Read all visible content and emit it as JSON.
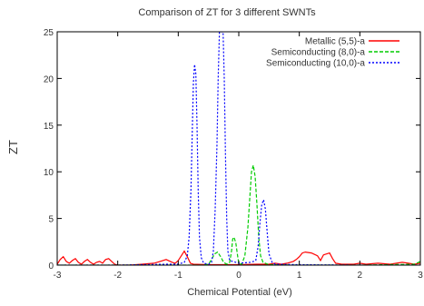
{
  "chart_data": {
    "type": "line",
    "title": "Comparison of ZT for 3 different SWNTs",
    "xlabel": "Chemical Potential (eV)",
    "ylabel": "ZT",
    "xlim": [
      -3,
      3
    ],
    "ylim": [
      0,
      25
    ],
    "xticks": [
      -3,
      -2,
      -1,
      0,
      1,
      2,
      3
    ],
    "yticks": [
      0,
      5,
      10,
      15,
      20,
      25
    ],
    "grid": false,
    "legend_position": "top-right",
    "series": [
      {
        "name": "Metallic (5,5)-a",
        "color": "#ff0000",
        "dash": "solid",
        "points": [
          [
            -3.0,
            0.1
          ],
          [
            -2.95,
            0.6
          ],
          [
            -2.9,
            0.9
          ],
          [
            -2.85,
            0.4
          ],
          [
            -2.8,
            0.2
          ],
          [
            -2.75,
            0.5
          ],
          [
            -2.7,
            0.7
          ],
          [
            -2.65,
            0.3
          ],
          [
            -2.6,
            0.1
          ],
          [
            -2.55,
            0.4
          ],
          [
            -2.5,
            0.6
          ],
          [
            -2.45,
            0.3
          ],
          [
            -2.4,
            0.1
          ],
          [
            -2.35,
            0.3
          ],
          [
            -2.3,
            0.4
          ],
          [
            -2.25,
            0.2
          ],
          [
            -2.2,
            0.6
          ],
          [
            -2.15,
            0.7
          ],
          [
            -2.1,
            0.4
          ],
          [
            -2.05,
            0.1
          ],
          [
            -2.0,
            0.0
          ],
          [
            -1.8,
            0.0
          ],
          [
            -1.6,
            0.1
          ],
          [
            -1.4,
            0.2
          ],
          [
            -1.3,
            0.4
          ],
          [
            -1.2,
            0.6
          ],
          [
            -1.1,
            0.3
          ],
          [
            -1.05,
            0.2
          ],
          [
            -1.0,
            0.5
          ],
          [
            -0.95,
            1.0
          ],
          [
            -0.9,
            1.5
          ],
          [
            -0.85,
            0.9
          ],
          [
            -0.8,
            0.2
          ],
          [
            -0.75,
            0.1
          ],
          [
            -0.5,
            0.05
          ],
          [
            0.0,
            0.05
          ],
          [
            0.3,
            0.1
          ],
          [
            0.5,
            0.1
          ],
          [
            0.6,
            0.2
          ],
          [
            0.7,
            0.1
          ],
          [
            0.8,
            0.2
          ],
          [
            0.9,
            0.4
          ],
          [
            0.95,
            0.6
          ],
          [
            1.0,
            0.9
          ],
          [
            1.05,
            1.3
          ],
          [
            1.1,
            1.4
          ],
          [
            1.2,
            1.3
          ],
          [
            1.3,
            1.0
          ],
          [
            1.35,
            0.5
          ],
          [
            1.4,
            1.1
          ],
          [
            1.5,
            1.3
          ],
          [
            1.55,
            0.7
          ],
          [
            1.6,
            0.2
          ],
          [
            1.7,
            0.1
          ],
          [
            1.9,
            0.1
          ],
          [
            2.0,
            0.2
          ],
          [
            2.1,
            0.1
          ],
          [
            2.3,
            0.2
          ],
          [
            2.5,
            0.1
          ],
          [
            2.7,
            0.3
          ],
          [
            2.8,
            0.2
          ],
          [
            2.9,
            0.1
          ],
          [
            3.0,
            0.2
          ]
        ]
      },
      {
        "name": "Semiconducting (8,0)-a",
        "color": "#00cc00",
        "dash": "4,2",
        "points": [
          [
            -3.0,
            0.0
          ],
          [
            -1.0,
            0.0
          ],
          [
            -0.6,
            0.0
          ],
          [
            -0.5,
            0.1
          ],
          [
            -0.45,
            0.6
          ],
          [
            -0.4,
            1.2
          ],
          [
            -0.35,
            1.4
          ],
          [
            -0.3,
            0.9
          ],
          [
            -0.25,
            0.3
          ],
          [
            -0.2,
            0.1
          ],
          [
            -0.15,
            0.3
          ],
          [
            -0.12,
            1.5
          ],
          [
            -0.1,
            2.8
          ],
          [
            -0.08,
            3.0
          ],
          [
            -0.05,
            2.4
          ],
          [
            -0.02,
            1.0
          ],
          [
            0.0,
            0.2
          ],
          [
            0.05,
            0.1
          ],
          [
            0.1,
            1.0
          ],
          [
            0.15,
            4.0
          ],
          [
            0.18,
            7.0
          ],
          [
            0.21,
            10.0
          ],
          [
            0.24,
            10.7
          ],
          [
            0.27,
            9.5
          ],
          [
            0.3,
            6.5
          ],
          [
            0.33,
            3.0
          ],
          [
            0.36,
            1.0
          ],
          [
            0.4,
            0.3
          ],
          [
            0.5,
            0.05
          ],
          [
            1.0,
            0.0
          ],
          [
            2.0,
            0.0
          ],
          [
            2.9,
            0.1
          ],
          [
            2.97,
            0.3
          ],
          [
            3.0,
            0.4
          ]
        ]
      },
      {
        "name": "Semiconducting (10,0)-a",
        "color": "#0000ff",
        "dash": "2,2",
        "points": [
          [
            -3.0,
            0.0
          ],
          [
            -2.0,
            0.0
          ],
          [
            -1.6,
            0.05
          ],
          [
            -1.2,
            0.1
          ],
          [
            -1.0,
            0.1
          ],
          [
            -0.9,
            0.3
          ],
          [
            -0.85,
            1.0
          ],
          [
            -0.82,
            3.0
          ],
          [
            -0.79,
            8.0
          ],
          [
            -0.77,
            14.0
          ],
          [
            -0.75,
            19.5
          ],
          [
            -0.73,
            21.5
          ],
          [
            -0.71,
            20.5
          ],
          [
            -0.69,
            15.0
          ],
          [
            -0.67,
            8.0
          ],
          [
            -0.65,
            3.0
          ],
          [
            -0.62,
            0.8
          ],
          [
            -0.58,
            0.2
          ],
          [
            -0.5,
            0.1
          ],
          [
            -0.45,
            0.3
          ],
          [
            -0.42,
            1.5
          ],
          [
            -0.39,
            6.0
          ],
          [
            -0.36,
            13.0
          ],
          [
            -0.34,
            20.0
          ],
          [
            -0.32,
            25.0
          ],
          [
            -0.26,
            25.0
          ],
          [
            -0.24,
            20.0
          ],
          [
            -0.22,
            12.0
          ],
          [
            -0.2,
            5.0
          ],
          [
            -0.18,
            1.5
          ],
          [
            -0.15,
            0.5
          ],
          [
            0.0,
            0.2
          ],
          [
            0.2,
            0.3
          ],
          [
            0.28,
            0.5
          ],
          [
            0.32,
            2.0
          ],
          [
            0.35,
            4.5
          ],
          [
            0.38,
            6.5
          ],
          [
            0.41,
            7.0
          ],
          [
            0.44,
            6.0
          ],
          [
            0.47,
            3.5
          ],
          [
            0.5,
            1.2
          ],
          [
            0.55,
            0.3
          ],
          [
            0.6,
            0.1
          ],
          [
            1.0,
            0.05
          ],
          [
            2.0,
            0.0
          ],
          [
            3.0,
            0.0
          ]
        ]
      }
    ]
  }
}
